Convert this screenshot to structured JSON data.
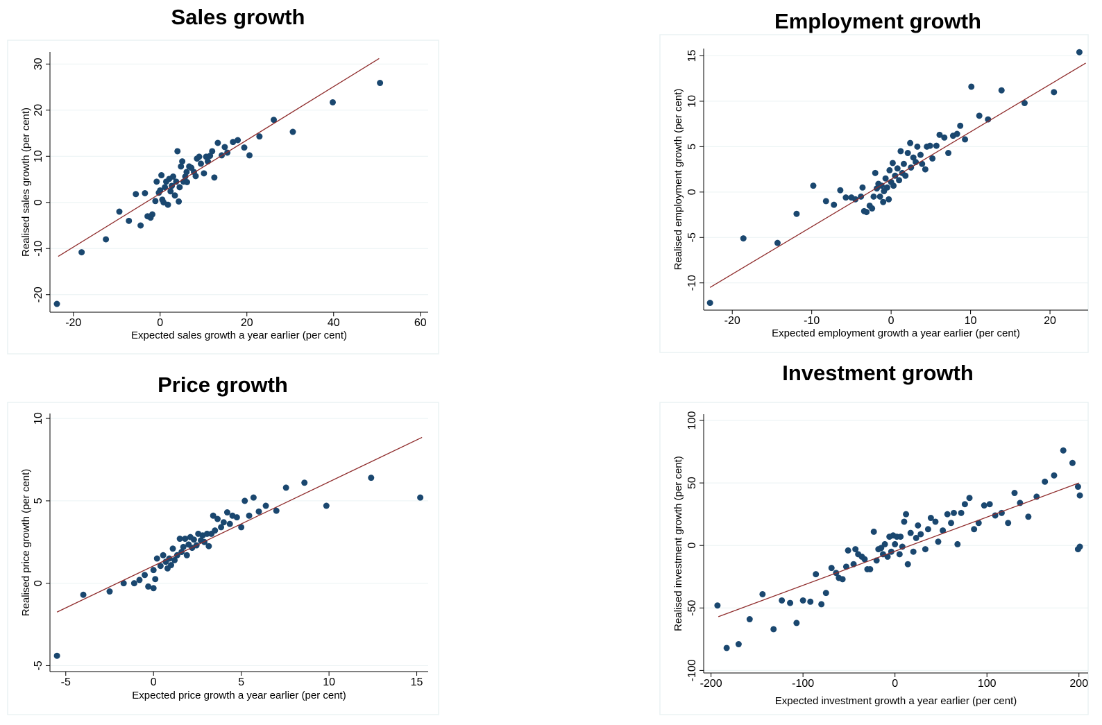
{
  "chart_data": [
    {
      "type": "scatter",
      "title": "Sales growth",
      "x_label": "Expected sales growth a year earlier (per cent)",
      "y_label": "Realised sales growth (per cent)",
      "xlim": [
        -25.4,
        61.8
      ],
      "ylim": [
        -23.8,
        32.6
      ],
      "xticks": [
        -20,
        0,
        20,
        40,
        60
      ],
      "yticks": [
        -20,
        -10,
        0,
        10,
        20,
        30
      ],
      "grid": true,
      "series": [
        {
          "type": "scatter",
          "color": "#1a476f",
          "x": [
            -23.8,
            -18.1,
            -12.5,
            -9.4,
            -7.2,
            -5.6,
            -4.5,
            -3.5,
            -2.9,
            -2.2,
            -1.8,
            -1.1,
            -0.8,
            -0.3,
            0,
            0.3,
            0.5,
            0.8,
            1.1,
            1.4,
            1.8,
            2.1,
            2.4,
            2.7,
            3,
            3.4,
            3.7,
            4,
            4.3,
            4.5,
            4.8,
            5.1,
            5.4,
            5.8,
            6.1,
            6.2,
            6.7,
            7.2,
            7.8,
            8.2,
            8.5,
            9,
            9.4,
            10.1,
            10.6,
            11,
            11.5,
            12,
            12.5,
            13.3,
            14.2,
            14.9,
            15.5,
            16.8,
            17.9,
            19.4,
            20.6,
            22.9,
            26.2,
            30.6,
            39.8,
            50.7
          ],
          "values": [
            -22,
            -10.8,
            -8,
            -2,
            -4,
            1.8,
            -5,
            2,
            -3,
            -3.3,
            -2.6,
            0.3,
            4.5,
            2.1,
            2.6,
            5.9,
            0.6,
            0,
            3.3,
            4.5,
            -0.5,
            5.1,
            2.4,
            3.6,
            5.6,
            1.5,
            4.5,
            11.1,
            0.2,
            3.3,
            7.8,
            8.9,
            4.5,
            5.6,
            6.6,
            4.4,
            7.8,
            7.5,
            6.6,
            5.7,
            9.5,
            9.9,
            8.4,
            6.3,
            9.9,
            8.9,
            10.1,
            11.1,
            5.4,
            12.9,
            10.2,
            12,
            10.8,
            13.1,
            13.5,
            11.9,
            10.2,
            14.3,
            17.9,
            15.3,
            21.7,
            25.9
          ]
        },
        {
          "type": "line",
          "color": "#8f2c2c",
          "x": [
            -23.5,
            50.5
          ],
          "values": [
            -11.7,
            31.2
          ]
        }
      ]
    },
    {
      "type": "scatter",
      "title": "Employment growth",
      "x_label": "Expected employment growth a year earlier (per cent)",
      "y_label": "Realised employment growth (per cent)",
      "xlim": [
        -23.6,
        24.8
      ],
      "ylim": [
        -13.0,
        15.8
      ],
      "xticks": [
        -20,
        -10,
        0,
        10,
        20
      ],
      "yticks": [
        -10,
        -5,
        0,
        5,
        10,
        15
      ],
      "grid": true,
      "series": [
        {
          "type": "scatter",
          "color": "#1a476f",
          "x": [
            -22.8,
            -18.6,
            -14.3,
            -11.9,
            -9.8,
            -8.2,
            -7.2,
            -6.4,
            -5.7,
            -5,
            -4.5,
            -3.8,
            -3.6,
            -3.4,
            -3.1,
            -2.7,
            -2.4,
            -2.2,
            -2,
            -1.8,
            -1.6,
            -1.4,
            -1.2,
            -1,
            -0.9,
            -0.7,
            -0.5,
            -0.3,
            -0.2,
            0,
            0.2,
            0.3,
            0.5,
            0.8,
            1,
            1.2,
            1.4,
            1.6,
            1.8,
            2.1,
            2.4,
            2.5,
            2.8,
            3.1,
            3.3,
            3.7,
            3.9,
            4.3,
            4.5,
            4.9,
            5.2,
            5.7,
            6.1,
            6.7,
            7.2,
            7.8,
            8.3,
            8.7,
            9.3,
            10.1,
            11.1,
            12.2,
            13.9,
            16.8,
            20.5,
            23.7
          ],
          "values": [
            -12.2,
            -5.1,
            -5.6,
            -2.4,
            0.7,
            -1,
            -1.4,
            0.2,
            -0.6,
            -0.6,
            -0.8,
            -0.5,
            0.5,
            -2.1,
            -2.2,
            -1.5,
            -1.8,
            -0.5,
            2.1,
            0.4,
            0.9,
            -0.5,
            0.7,
            -1.1,
            0.1,
            1.5,
            0.5,
            -0.8,
            2.4,
            1.1,
            3.2,
            0.7,
            1.8,
            2.6,
            1.3,
            4.5,
            2.1,
            3.1,
            1.8,
            4.3,
            5.4,
            2.7,
            3.8,
            3.3,
            5,
            4.1,
            3.1,
            2.5,
            5,
            5.1,
            3.7,
            5.1,
            6.3,
            6,
            4.3,
            6.2,
            6.4,
            7.3,
            5.8,
            11.6,
            8.4,
            8,
            11.2,
            9.8,
            11,
            15.4
          ]
        },
        {
          "type": "line",
          "color": "#8f2c2c",
          "x": [
            -22.8,
            24.5
          ],
          "values": [
            -10.5,
            14.2
          ]
        }
      ]
    },
    {
      "type": "scatter",
      "title": "Price growth",
      "x_label": "Expected price growth a year earlier (per cent)",
      "y_label": "Realised price growth (per cent)",
      "xlim": [
        -5.9,
        15.65
      ],
      "ylim": [
        -5.36,
        10.3
      ],
      "xticks": [
        -5,
        0,
        5,
        10,
        15
      ],
      "yticks": [
        -5,
        0,
        5,
        10
      ],
      "grid": true,
      "series": [
        {
          "type": "scatter",
          "color": "#1a476f",
          "x": [
            -5.5,
            -4,
            -2.5,
            -1.7,
            -1.1,
            -0.8,
            -0.5,
            -0.3,
            0,
            0,
            0.1,
            0.2,
            0.4,
            0.55,
            0.7,
            0.8,
            0.9,
            1,
            1.1,
            1.2,
            1.35,
            1.5,
            1.6,
            1.7,
            1.8,
            1.9,
            2,
            2.1,
            2.2,
            2.3,
            2.45,
            2.55,
            2.7,
            2.8,
            2.9,
            3.05,
            3.15,
            3.3,
            3.4,
            3.5,
            3.65,
            3.85,
            4,
            4.2,
            4.35,
            4.5,
            4.75,
            5,
            5.2,
            5.45,
            5.7,
            6,
            6.4,
            7,
            7.55,
            8.6,
            9.85,
            12.4,
            15.2
          ],
          "values": [
            -4.4,
            -0.7,
            -0.5,
            0,
            0,
            0.2,
            0.5,
            -0.2,
            -0.3,
            0.8,
            0.25,
            1.5,
            1.05,
            1.7,
            1.3,
            0.9,
            1.5,
            1.1,
            2.1,
            1.4,
            1.7,
            2.7,
            1.9,
            2.2,
            2.7,
            1.7,
            2.35,
            2.8,
            2.15,
            2.65,
            2.3,
            3,
            2.6,
            2.9,
            2.5,
            3,
            2.25,
            3,
            4.1,
            3.2,
            3.9,
            3.4,
            3.7,
            4.3,
            3.6,
            4.1,
            4,
            3.4,
            5,
            4.1,
            5.2,
            4.35,
            4.7,
            4.4,
            5.8,
            6.1,
            4.7,
            6.4,
            5.2
          ]
        },
        {
          "type": "line",
          "color": "#8f2c2c",
          "x": [
            -5.5,
            15.3
          ],
          "values": [
            -1.75,
            8.85
          ]
        }
      ]
    },
    {
      "type": "scatter",
      "title": "Investment growth",
      "x_label": "Expected investment growth a year earlier (per cent)",
      "y_label": "Realised investment growth (per cent)",
      "xlim": [
        -208,
        210
      ],
      "ylim": [
        -102,
        105
      ],
      "xticks": [
        -200,
        -100,
        0,
        100,
        200
      ],
      "yticks": [
        -100,
        -50,
        0,
        50,
        100
      ],
      "grid": true,
      "series": [
        {
          "type": "scatter",
          "color": "#1a476f",
          "x": [
            -193,
            -183,
            -170,
            -158,
            -144,
            -132,
            -123,
            -114,
            -107,
            -100,
            -92,
            -86,
            -80,
            -75,
            -69,
            -64,
            -61,
            -57,
            -53,
            -51,
            -45,
            -43,
            -40,
            -36,
            -33,
            -30,
            -27,
            -23,
            -20,
            -18,
            -15,
            -13,
            -11,
            -8,
            -6,
            -4,
            -2,
            0,
            2,
            5,
            6,
            8,
            10,
            12,
            14,
            17,
            20,
            23,
            25,
            28,
            33,
            36,
            39,
            44,
            47,
            52,
            57,
            61,
            64,
            68,
            72,
            76,
            81,
            86,
            91,
            97,
            103,
            109,
            116,
            123,
            130,
            136,
            145,
            154,
            163,
            173,
            183,
            193,
            199,
            201,
            199,
            201
          ],
          "values": [
            -48,
            -82,
            -79,
            -59,
            -39,
            -67,
            -44,
            -46,
            -62,
            -44,
            -45,
            -23,
            -47,
            -38,
            -18,
            -22,
            -26,
            -27,
            -17,
            -4,
            -15,
            -3,
            -7,
            -9,
            -11,
            -19,
            -19,
            11,
            -12,
            -3,
            -2,
            -7,
            1,
            -9,
            7,
            -5,
            8,
            1,
            7,
            -7,
            7,
            -1,
            19,
            25,
            -15,
            10,
            -5,
            6,
            16,
            9,
            -3,
            13,
            22,
            19,
            3,
            12,
            25,
            18,
            26,
            1,
            26,
            33,
            38,
            13,
            18,
            32,
            33,
            24,
            26,
            18,
            42,
            34,
            23,
            39,
            51,
            56,
            76,
            66,
            47,
            40,
            -3,
            -1
          ]
        },
        {
          "type": "line",
          "color": "#8f2c2c",
          "x": [
            -192,
            200
          ],
          "values": [
            -57,
            50
          ]
        }
      ]
    }
  ]
}
